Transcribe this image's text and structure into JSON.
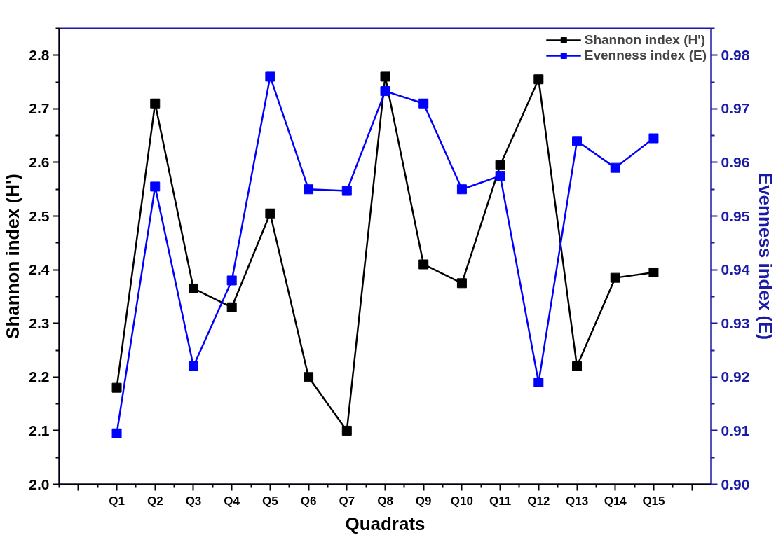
{
  "chart_data": {
    "type": "line",
    "xlabel": "Quadrats",
    "ylabel": "Shannon index (H')",
    "y2label": "Evenness index (E)",
    "categories": [
      "Q1",
      "Q2",
      "Q3",
      "Q4",
      "Q5",
      "Q6",
      "Q7",
      "Q8",
      "Q9",
      "Q10",
      "Q11",
      "Q12",
      "Q13",
      "Q14",
      "Q15"
    ],
    "series": [
      {
        "name": "Shannon index (H')",
        "color": "#000000",
        "values": [
          2.18,
          2.71,
          2.365,
          2.33,
          2.505,
          2.2,
          2.1,
          2.76,
          2.41,
          2.375,
          2.595,
          2.755,
          2.22,
          2.385,
          2.395
        ]
      },
      {
        "name": "Evenness index (E)",
        "color": "#0000ff",
        "axis": "y2",
        "values": [
          0.9095,
          0.9555,
          0.922,
          0.938,
          0.976,
          0.955,
          0.9547,
          0.9733,
          0.971,
          0.955,
          0.9575,
          0.919,
          0.964,
          0.959,
          0.9645
        ]
      }
    ],
    "ylim": [
      2.0,
      2.85
    ],
    "yticks": [
      {
        "value": 2.0,
        "label": "2.0"
      },
      2.1,
      2.2,
      2.3,
      2.4,
      2.5,
      2.6,
      2.7,
      2.8
    ],
    "y2lim": [
      0.9,
      0.985
    ],
    "y2ticks": [
      {
        "value": 0.9,
        "label": "0.90"
      },
      0.91,
      0.92,
      0.93,
      0.94,
      0.95,
      0.96,
      0.97,
      0.98
    ],
    "marker": "square",
    "line_style": "solid",
    "legend": "top right",
    "grid": false
  }
}
